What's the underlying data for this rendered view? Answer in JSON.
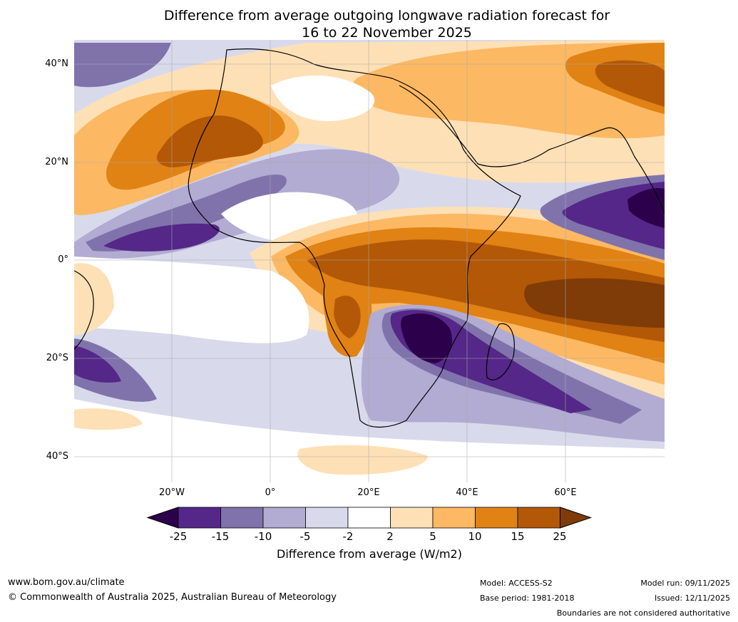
{
  "title": {
    "line1": "Difference from average outgoing longwave radiation forecast for",
    "line2": "16 to 22 November 2025"
  },
  "axes": {
    "lat_labels": [
      "40°N",
      "20°N",
      "0°",
      "20°S",
      "40°S"
    ],
    "lon_labels": [
      "20°W",
      "0°",
      "20°E",
      "40°E",
      "60°E"
    ]
  },
  "colorbar": {
    "ticks": [
      "-25",
      "-15",
      "-10",
      "-5",
      "-2",
      "2",
      "5",
      "10",
      "15",
      "25"
    ],
    "colors": [
      "#2d004b",
      "#542788",
      "#8073ac",
      "#b2abd2",
      "#d8daeb",
      "#ffffff",
      "#fee0b6",
      "#fdb863",
      "#e08214",
      "#b35806",
      "#7f3b08"
    ],
    "label": "Difference from average (W/m2)"
  },
  "footer": {
    "website": "www.bom.gov.au/climate",
    "copyright": "© Commonwealth of Australia 2025, Australian Bureau of Meteorology",
    "model": "Model: ACCESS-S2",
    "base_period": "Base period: 1981-2018",
    "model_run": "Model run: 09/11/2025",
    "issued": "Issued: 12/11/2025",
    "disclaimer": "Boundaries are not considered authoritative"
  }
}
